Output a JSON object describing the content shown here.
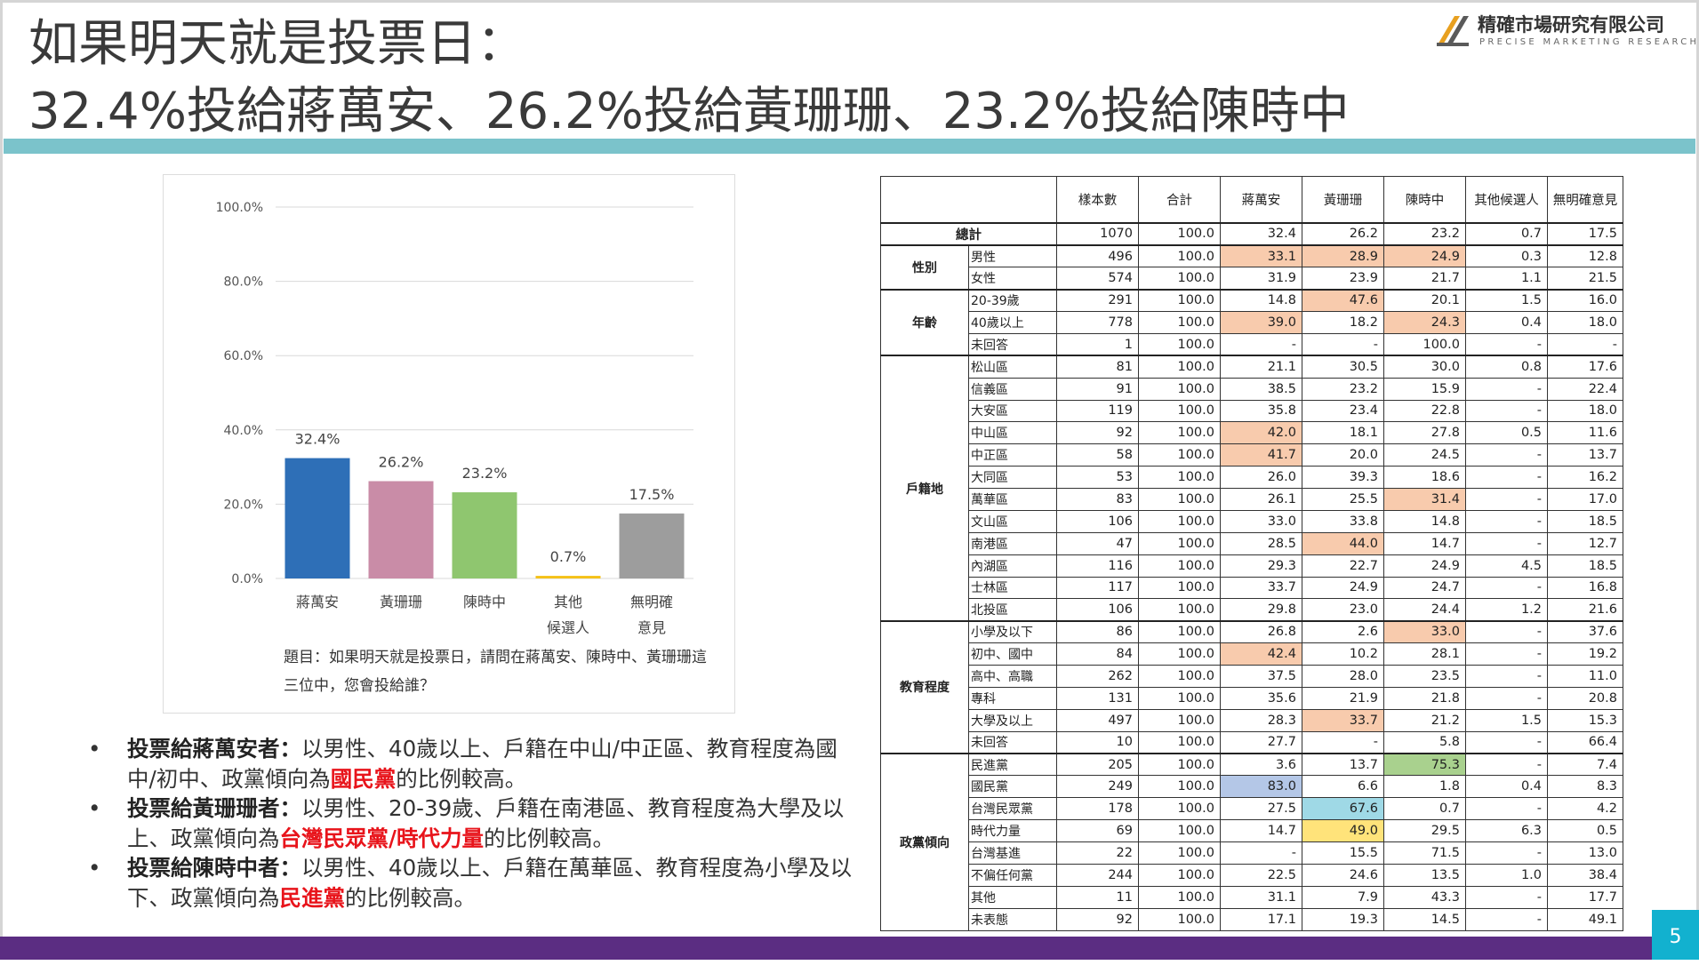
{
  "title": {
    "line1": "如果明天就是投票日：",
    "line2": "32.4%投給蔣萬安、26.2%投給黃珊珊、23.2%投給陳時中"
  },
  "logo": {
    "name": "精確市場研究有限公司",
    "sub": "PRECISE MARKETING RESEARCH"
  },
  "chart_data": {
    "type": "bar",
    "categories": [
      [
        "蔣萬安"
      ],
      [
        "黃珊珊"
      ],
      [
        "陳時中"
      ],
      [
        "其他",
        "候選人"
      ],
      [
        "無明確",
        "意見"
      ]
    ],
    "values": [
      32.4,
      26.2,
      23.2,
      0.7,
      17.5
    ],
    "value_labels": [
      "32.4%",
      "26.2%",
      "23.2%",
      "0.7%",
      "17.5%"
    ],
    "colors": [
      "#2e6fb7",
      "#c98ca7",
      "#8fc66f",
      "#f5c118",
      "#9d9d9d"
    ],
    "yticks": [
      "0.0%",
      "20.0%",
      "40.0%",
      "60.0%",
      "80.0%",
      "100.0%"
    ],
    "ylim": [
      0,
      100
    ],
    "grid": true,
    "title": "",
    "xlabel": "",
    "ylabel": ""
  },
  "chart_note": "題目：如果明天就是投票日，請問在蔣萬安、陳時中、黃珊珊這三位中，您會投給誰？",
  "bullets": [
    {
      "lead": "投票給蔣萬安者：",
      "text": "以男性、40歲以上、戶籍在中山/中正區、教育程度為國中/初中、政黨傾向為",
      "party": "國民黨",
      "tail": "的比例較高。"
    },
    {
      "lead": "投票給黃珊珊者：",
      "text": "以男性、20-39歲、戶籍在南港區、教育程度為大學及以上、政黨傾向為",
      "party": "台灣民眾黨/時代力量",
      "tail": "的比例較高。"
    },
    {
      "lead": "投票給陳時中者：",
      "text": "以男性、40歲以上、戶籍在萬華區、教育程度為小學及以下、政黨傾向為",
      "party": "民進黨",
      "tail": "的比例較高。"
    }
  ],
  "table": {
    "headers": [
      "樣本數",
      "合計",
      "蔣萬安",
      "黃珊珊",
      "陳時中",
      "其他候選人",
      "無明確意見"
    ],
    "total": {
      "label": "總計",
      "cells": [
        "1070",
        "100.0",
        "32.4",
        "26.2",
        "23.2",
        "0.7",
        "17.5"
      ]
    },
    "highlight_colors": {
      "o": "#f8cbad",
      "b": "#b4c7e7",
      "c": "#9fd9e6",
      "y": "#ffe37a",
      "g": "#a9d18e"
    },
    "groups": [
      {
        "name": "性別",
        "rows": [
          {
            "label": "男性",
            "cells": [
              "496",
              "100.0",
              "33.1",
              "28.9",
              "24.9",
              "0.3",
              "12.8"
            ],
            "hl": [
              "",
              "",
              "o",
              "o",
              "o",
              "",
              ""
            ]
          },
          {
            "label": "女性",
            "cells": [
              "574",
              "100.0",
              "31.9",
              "23.9",
              "21.7",
              "1.1",
              "21.5"
            ],
            "hl": [
              "",
              "",
              "",
              "",
              "",
              "",
              ""
            ]
          }
        ]
      },
      {
        "name": "年齡",
        "rows": [
          {
            "label": "20-39歲",
            "cells": [
              "291",
              "100.0",
              "14.8",
              "47.6",
              "20.1",
              "1.5",
              "16.0"
            ],
            "hl": [
              "",
              "",
              "",
              "o",
              "",
              "",
              ""
            ]
          },
          {
            "label": "40歲以上",
            "cells": [
              "778",
              "100.0",
              "39.0",
              "18.2",
              "24.3",
              "0.4",
              "18.0"
            ],
            "hl": [
              "",
              "",
              "o",
              "",
              "o",
              "",
              ""
            ]
          },
          {
            "label": "未回答",
            "cells": [
              "1",
              "100.0",
              "-",
              "-",
              "100.0",
              "-",
              "-"
            ],
            "hl": [
              "",
              "",
              "",
              "",
              "",
              "",
              ""
            ]
          }
        ]
      },
      {
        "name": "戶籍地",
        "rows": [
          {
            "label": "松山區",
            "cells": [
              "81",
              "100.0",
              "21.1",
              "30.5",
              "30.0",
              "0.8",
              "17.6"
            ],
            "hl": [
              "",
              "",
              "",
              "",
              "",
              "",
              ""
            ]
          },
          {
            "label": "信義區",
            "cells": [
              "91",
              "100.0",
              "38.5",
              "23.2",
              "15.9",
              "-",
              "22.4"
            ],
            "hl": [
              "",
              "",
              "",
              "",
              "",
              "",
              ""
            ]
          },
          {
            "label": "大安區",
            "cells": [
              "119",
              "100.0",
              "35.8",
              "23.4",
              "22.8",
              "-",
              "18.0"
            ],
            "hl": [
              "",
              "",
              "",
              "",
              "",
              "",
              ""
            ]
          },
          {
            "label": "中山區",
            "cells": [
              "92",
              "100.0",
              "42.0",
              "18.1",
              "27.8",
              "0.5",
              "11.6"
            ],
            "hl": [
              "",
              "",
              "o",
              "",
              "",
              "",
              ""
            ]
          },
          {
            "label": "中正區",
            "cells": [
              "58",
              "100.0",
              "41.7",
              "20.0",
              "24.5",
              "-",
              "13.7"
            ],
            "hl": [
              "",
              "",
              "o",
              "",
              "",
              "",
              ""
            ]
          },
          {
            "label": "大同區",
            "cells": [
              "53",
              "100.0",
              "26.0",
              "39.3",
              "18.6",
              "-",
              "16.2"
            ],
            "hl": [
              "",
              "",
              "",
              "",
              "",
              "",
              ""
            ]
          },
          {
            "label": "萬華區",
            "cells": [
              "83",
              "100.0",
              "26.1",
              "25.5",
              "31.4",
              "-",
              "17.0"
            ],
            "hl": [
              "",
              "",
              "",
              "",
              "o",
              "",
              ""
            ]
          },
          {
            "label": "文山區",
            "cells": [
              "106",
              "100.0",
              "33.0",
              "33.8",
              "14.8",
              "-",
              "18.5"
            ],
            "hl": [
              "",
              "",
              "",
              "",
              "",
              "",
              ""
            ]
          },
          {
            "label": "南港區",
            "cells": [
              "47",
              "100.0",
              "28.5",
              "44.0",
              "14.7",
              "-",
              "12.7"
            ],
            "hl": [
              "",
              "",
              "",
              "o",
              "",
              "",
              ""
            ]
          },
          {
            "label": "內湖區",
            "cells": [
              "116",
              "100.0",
              "29.3",
              "22.7",
              "24.9",
              "4.5",
              "18.5"
            ],
            "hl": [
              "",
              "",
              "",
              "",
              "",
              "",
              ""
            ]
          },
          {
            "label": "士林區",
            "cells": [
              "117",
              "100.0",
              "33.7",
              "24.9",
              "24.7",
              "-",
              "16.8"
            ],
            "hl": [
              "",
              "",
              "",
              "",
              "",
              "",
              ""
            ]
          },
          {
            "label": "北投區",
            "cells": [
              "106",
              "100.0",
              "29.8",
              "23.0",
              "24.4",
              "1.2",
              "21.6"
            ],
            "hl": [
              "",
              "",
              "",
              "",
              "",
              "",
              ""
            ]
          }
        ]
      },
      {
        "name": "教育程度",
        "rows": [
          {
            "label": "小學及以下",
            "cells": [
              "86",
              "100.0",
              "26.8",
              "2.6",
              "33.0",
              "-",
              "37.6"
            ],
            "hl": [
              "",
              "",
              "",
              "",
              "o",
              "",
              ""
            ]
          },
          {
            "label": "初中、國中",
            "cells": [
              "84",
              "100.0",
              "42.4",
              "10.2",
              "28.1",
              "-",
              "19.2"
            ],
            "hl": [
              "",
              "",
              "o",
              "",
              "",
              "",
              ""
            ]
          },
          {
            "label": "高中、高職",
            "cells": [
              "262",
              "100.0",
              "37.5",
              "28.0",
              "23.5",
              "-",
              "11.0"
            ],
            "hl": [
              "",
              "",
              "",
              "",
              "",
              "",
              ""
            ]
          },
          {
            "label": "專科",
            "cells": [
              "131",
              "100.0",
              "35.6",
              "21.9",
              "21.8",
              "-",
              "20.8"
            ],
            "hl": [
              "",
              "",
              "",
              "",
              "",
              "",
              ""
            ]
          },
          {
            "label": "大學及以上",
            "cells": [
              "497",
              "100.0",
              "28.3",
              "33.7",
              "21.2",
              "1.5",
              "15.3"
            ],
            "hl": [
              "",
              "",
              "",
              "o",
              "",
              "",
              ""
            ]
          },
          {
            "label": "未回答",
            "cells": [
              "10",
              "100.0",
              "27.7",
              "-",
              "5.8",
              "-",
              "66.4"
            ],
            "hl": [
              "",
              "",
              "",
              "",
              "",
              "",
              ""
            ]
          }
        ]
      },
      {
        "name": "政黨傾向",
        "rows": [
          {
            "label": "民進黨",
            "cells": [
              "205",
              "100.0",
              "3.6",
              "13.7",
              "75.3",
              "-",
              "7.4"
            ],
            "hl": [
              "",
              "",
              "",
              "",
              "g",
              "",
              ""
            ]
          },
          {
            "label": "國民黨",
            "cells": [
              "249",
              "100.0",
              "83.0",
              "6.6",
              "1.8",
              "0.4",
              "8.3"
            ],
            "hl": [
              "",
              "",
              "b",
              "",
              "",
              "",
              ""
            ]
          },
          {
            "label": "台灣民眾黨",
            "cells": [
              "178",
              "100.0",
              "27.5",
              "67.6",
              "0.7",
              "-",
              "4.2"
            ],
            "hl": [
              "",
              "",
              "",
              "c",
              "",
              "",
              ""
            ]
          },
          {
            "label": "時代力量",
            "cells": [
              "69",
              "100.0",
              "14.7",
              "49.0",
              "29.5",
              "6.3",
              "0.5"
            ],
            "hl": [
              "",
              "",
              "",
              "y",
              "",
              "",
              ""
            ]
          },
          {
            "label": "台灣基進",
            "cells": [
              "22",
              "100.0",
              "-",
              "15.5",
              "71.5",
              "-",
              "13.0"
            ],
            "hl": [
              "",
              "",
              "",
              "",
              "",
              "",
              ""
            ]
          },
          {
            "label": "不偏任何黨",
            "cells": [
              "244",
              "100.0",
              "22.5",
              "24.6",
              "13.5",
              "1.0",
              "38.4"
            ],
            "hl": [
              "",
              "",
              "",
              "",
              "",
              "",
              ""
            ]
          },
          {
            "label": "其他",
            "cells": [
              "11",
              "100.0",
              "31.1",
              "7.9",
              "43.3",
              "-",
              "17.7"
            ],
            "hl": [
              "",
              "",
              "",
              "",
              "",
              "",
              ""
            ]
          },
          {
            "label": "未表態",
            "cells": [
              "92",
              "100.0",
              "17.1",
              "19.3",
              "14.5",
              "-",
              "49.1"
            ],
            "hl": [
              "",
              "",
              "",
              "",
              "",
              "",
              ""
            ]
          }
        ]
      }
    ]
  },
  "page_number": "5"
}
